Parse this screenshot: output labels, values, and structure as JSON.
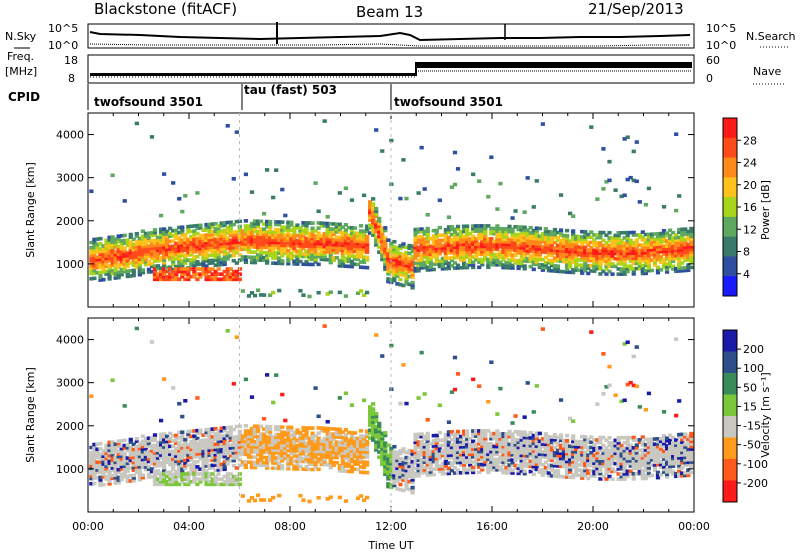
{
  "header": {
    "station": "Blackstone (fitACF)",
    "beam": "Beam 13",
    "date": "21/Sep/2013"
  },
  "side_labels": {
    "nsky": "N.Sky",
    "nsearch": "N.Search",
    "freq_line1": "Freq.",
    "freq_line2": "[MHz]",
    "nave": "Nave",
    "cpid": "CPID"
  },
  "noise_panel": {
    "left_ticks": [
      "10^5",
      "10^0"
    ],
    "right_ticks": [
      "10^5",
      "10^0"
    ]
  },
  "freq_panel": {
    "left_ticks": [
      "18",
      "8"
    ],
    "right_ticks": [
      "60",
      "0"
    ]
  },
  "cpid_segments": [
    {
      "label": "twofsound 3501",
      "start_hour": 0,
      "end_hour": 6
    },
    {
      "label": "tau (fast) 503",
      "start_hour": 6,
      "end_hour": 12
    },
    {
      "label": "twofsound 3501",
      "start_hour": 12,
      "end_hour": 24
    }
  ],
  "chart_data": [
    {
      "type": "heatmap",
      "title": "",
      "xlabel": "Time UT",
      "ylabel": "Slant Range [km]",
      "xlim": [
        0,
        24
      ],
      "ylim": [
        0,
        4500
      ],
      "x_ticks": [
        "00:00",
        "04:00",
        "08:00",
        "12:00",
        "16:00",
        "20:00",
        "00:00"
      ],
      "y_ticks": [
        1000,
        2000,
        3000,
        4000
      ],
      "colorbar": {
        "label": "Power [dB]",
        "ticks": [
          "28",
          "24",
          "20",
          "16",
          "12",
          "8",
          "4"
        ],
        "colors": [
          "#ff1a1a",
          "#ff4a1a",
          "#ff8a1a",
          "#ffc21a",
          "#a8d41a",
          "#5fa860",
          "#3a7a6a",
          "#2e4fa0",
          "#1a1aff"
        ]
      },
      "echo_regions": [
        {
          "feature": "main band",
          "time": [
            0,
            24
          ],
          "range_km": [
            900,
            1700
          ],
          "level": "strong"
        },
        {
          "feature": "near-range band",
          "time": [
            2.5,
            6
          ],
          "range_km": [
            600,
            900
          ],
          "level": "strong"
        },
        {
          "feature": "sporadic far range",
          "time": [
            0,
            24
          ],
          "range_km": [
            2000,
            3200
          ],
          "level": "weak"
        }
      ]
    },
    {
      "type": "heatmap",
      "title": "",
      "xlabel": "Time UT",
      "ylabel": "Slant Range [km]",
      "xlim": [
        0,
        24
      ],
      "ylim": [
        0,
        4500
      ],
      "x_ticks": [
        "00:00",
        "04:00",
        "08:00",
        "12:00",
        "16:00",
        "20:00",
        "00:00"
      ],
      "y_ticks": [
        1000,
        2000,
        3000,
        4000
      ],
      "colorbar": {
        "label": "Velocity [m s⁻¹]",
        "ticks": [
          "200",
          "100",
          "50",
          "15",
          "-15",
          "-50",
          "-100",
          "-200"
        ],
        "colors": [
          "#1a1aa8",
          "#2e4f8a",
          "#3a8a5a",
          "#7ac83a",
          "#c8c8c0",
          "#ff9a1a",
          "#ff5a1a",
          "#ff1a1a"
        ]
      }
    }
  ]
}
